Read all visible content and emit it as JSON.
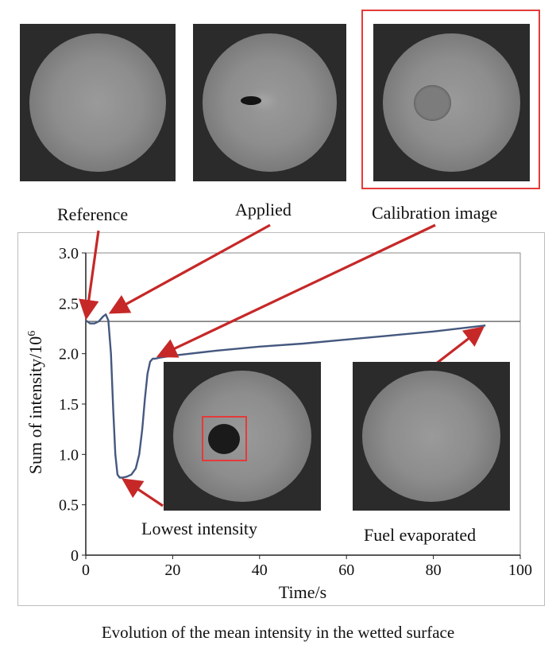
{
  "top_labels": {
    "reference": "Reference",
    "applied": "Applied",
    "calibration": "Calibration image"
  },
  "inset_labels": {
    "lowest": "Lowest intensity",
    "evaporated": "Fuel evaporated"
  },
  "caption": "Evolution of the mean intensity in the wetted surface",
  "colors": {
    "curve": "#45587f",
    "reference_line": "#555555",
    "arrow": "#c62828",
    "calibration_frame": "#e53a3a"
  },
  "chart_data": {
    "type": "line",
    "title": "",
    "xlabel": "Time/s",
    "ylabel": "Sum of intensity/10^6",
    "xlim": [
      0,
      100
    ],
    "ylim": [
      0,
      3.0
    ],
    "x_ticks": [
      0,
      20,
      40,
      60,
      80,
      100
    ],
    "y_ticks": [
      0,
      0.5,
      1.0,
      1.5,
      2.0,
      2.5,
      3.0
    ],
    "y_tick_labels": [
      "0",
      "0.5",
      "1.0",
      "1.5",
      "2.0",
      "2.5",
      "3.0"
    ],
    "grid": false,
    "series": [
      {
        "name": "Sum of intensity",
        "x": [
          0,
          1,
          2,
          3,
          4,
          4.6,
          5.2,
          5.8,
          6.3,
          6.8,
          7.3,
          7.8,
          8.5,
          9.5,
          10.5,
          11.5,
          12.3,
          13.0,
          13.6,
          14.2,
          14.8,
          15.4,
          16.0,
          17,
          20,
          30,
          40,
          50,
          60,
          70,
          80,
          92
        ],
        "y": [
          2.33,
          2.3,
          2.3,
          2.32,
          2.37,
          2.39,
          2.33,
          2.0,
          1.45,
          1.0,
          0.8,
          0.77,
          0.77,
          0.78,
          0.8,
          0.86,
          1.0,
          1.25,
          1.55,
          1.8,
          1.92,
          1.95,
          1.95,
          1.96,
          1.98,
          2.03,
          2.07,
          2.1,
          2.14,
          2.18,
          2.22,
          2.28
        ]
      }
    ],
    "reference_level": 2.32,
    "annotations": [
      {
        "label": "Reference",
        "points_to": [
          0,
          2.32
        ]
      },
      {
        "label": "Applied",
        "points_to": [
          5,
          2.39
        ]
      },
      {
        "label": "Calibration image",
        "points_to": [
          16,
          1.96
        ]
      },
      {
        "label": "Lowest intensity",
        "points_to": [
          8,
          0.77
        ]
      },
      {
        "label": "Fuel evaporated",
        "points_to": [
          92,
          2.28
        ]
      }
    ]
  }
}
